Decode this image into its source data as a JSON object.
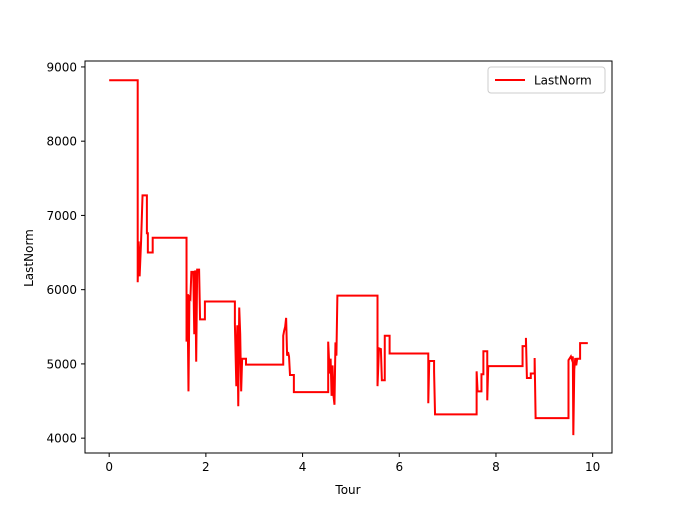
{
  "chart_data": {
    "type": "line",
    "title": "",
    "xlabel": "Tour",
    "ylabel": "LastNorm",
    "xlim": [
      -0.5,
      10.4
    ],
    "ylim": [
      3800,
      9080
    ],
    "xticks": [
      "0",
      "2",
      "4",
      "6",
      "8",
      "10"
    ],
    "yticks": [
      "4000",
      "5000",
      "6000",
      "7000",
      "8000",
      "9000"
    ],
    "grid": false,
    "legend": "upper right",
    "series": [
      {
        "name": "LastNorm",
        "color": "#ff0000",
        "style": "step",
        "points": [
          [
            0.0,
            8820
          ],
          [
            0.59,
            8820
          ],
          [
            0.59,
            6100
          ],
          [
            0.61,
            6650
          ],
          [
            0.63,
            6180
          ],
          [
            0.66,
            6650
          ],
          [
            0.69,
            7270
          ],
          [
            0.78,
            7270
          ],
          [
            0.78,
            6760
          ],
          [
            0.8,
            6760
          ],
          [
            0.8,
            6500
          ],
          [
            0.9,
            6500
          ],
          [
            0.9,
            6700
          ],
          [
            1.6,
            6700
          ],
          [
            1.6,
            5300
          ],
          [
            1.62,
            5940
          ],
          [
            1.64,
            4630
          ],
          [
            1.66,
            5900
          ],
          [
            1.68,
            5880
          ],
          [
            1.7,
            6240
          ],
          [
            1.74,
            6240
          ],
          [
            1.76,
            5400
          ],
          [
            1.78,
            6260
          ],
          [
            1.8,
            5030
          ],
          [
            1.82,
            6270
          ],
          [
            1.86,
            6270
          ],
          [
            1.88,
            5600
          ],
          [
            1.98,
            5600
          ],
          [
            1.98,
            5840
          ],
          [
            2.6,
            5840
          ],
          [
            2.6,
            5540
          ],
          [
            2.63,
            4700
          ],
          [
            2.65,
            5520
          ],
          [
            2.67,
            4430
          ],
          [
            2.69,
            5760
          ],
          [
            2.71,
            5400
          ],
          [
            2.73,
            4630
          ],
          [
            2.75,
            5070
          ],
          [
            2.83,
            5070
          ],
          [
            2.83,
            4990
          ],
          [
            3.6,
            4990
          ],
          [
            3.6,
            5380
          ],
          [
            3.62,
            5450
          ],
          [
            3.64,
            5500
          ],
          [
            3.66,
            5620
          ],
          [
            3.68,
            5110
          ],
          [
            3.7,
            5160
          ],
          [
            3.72,
            5100
          ],
          [
            3.74,
            4850
          ],
          [
            3.82,
            4850
          ],
          [
            3.82,
            4620
          ],
          [
            4.53,
            4620
          ],
          [
            4.53,
            5300
          ],
          [
            4.56,
            4870
          ],
          [
            4.58,
            5070
          ],
          [
            4.6,
            4570
          ],
          [
            4.62,
            4980
          ],
          [
            4.64,
            4570
          ],
          [
            4.66,
            4450
          ],
          [
            4.68,
            5290
          ],
          [
            4.7,
            5110
          ],
          [
            4.72,
            5920
          ],
          [
            5.55,
            5920
          ],
          [
            5.55,
            4700
          ],
          [
            5.58,
            5210
          ],
          [
            5.62,
            5200
          ],
          [
            5.64,
            4780
          ],
          [
            5.7,
            4780
          ],
          [
            5.7,
            5380
          ],
          [
            5.8,
            5380
          ],
          [
            5.8,
            5140
          ],
          [
            6.6,
            5140
          ],
          [
            6.6,
            4470
          ],
          [
            6.62,
            5040
          ],
          [
            6.72,
            5040
          ],
          [
            6.72,
            4900
          ],
          [
            6.74,
            4320
          ],
          [
            7.6,
            4320
          ],
          [
            7.6,
            4900
          ],
          [
            7.62,
            4630
          ],
          [
            7.7,
            4630
          ],
          [
            7.7,
            4860
          ],
          [
            7.74,
            4860
          ],
          [
            7.74,
            5170
          ],
          [
            7.82,
            5170
          ],
          [
            7.82,
            4510
          ],
          [
            7.84,
            4970
          ],
          [
            8.55,
            4970
          ],
          [
            8.55,
            5240
          ],
          [
            8.62,
            5240
          ],
          [
            8.62,
            5350
          ],
          [
            8.64,
            4810
          ],
          [
            8.72,
            4810
          ],
          [
            8.72,
            4870
          ],
          [
            8.8,
            4870
          ],
          [
            8.8,
            5080
          ],
          [
            8.82,
            4270
          ],
          [
            9.5,
            4270
          ],
          [
            9.5,
            5050
          ],
          [
            9.55,
            5100
          ],
          [
            9.57,
            5060
          ],
          [
            9.59,
            5100
          ],
          [
            9.6,
            4040
          ],
          [
            9.62,
            4930
          ],
          [
            9.64,
            5080
          ],
          [
            9.66,
            4980
          ],
          [
            9.68,
            5070
          ],
          [
            9.74,
            5070
          ],
          [
            9.74,
            5280
          ],
          [
            9.9,
            5280
          ]
        ]
      }
    ]
  },
  "legend": {
    "label": "LastNorm"
  },
  "colors": {
    "line": "#ff0000",
    "axes": "#000000",
    "background": "#ffffff"
  }
}
